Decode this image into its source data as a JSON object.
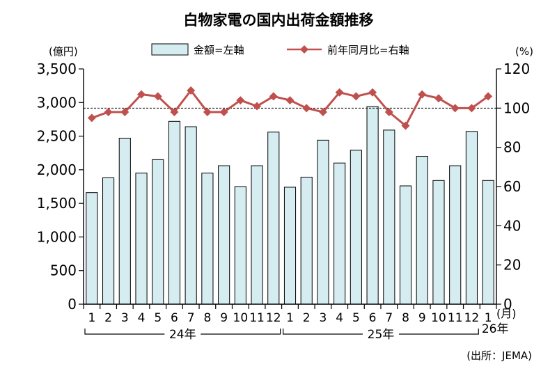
{
  "chart_data": {
    "type": "bar+line",
    "title": "白物家電の国内出荷金額推移",
    "left_axis_unit": "(億円)",
    "right_axis_unit": "(%)",
    "month_unit": "(月)",
    "source": "(出所：JEMA)",
    "left_axis": {
      "ylim": [
        0,
        3500
      ],
      "ticks": [
        "0",
        "500",
        "1,000",
        "1,500",
        "2,000",
        "2,500",
        "3,000",
        "3,500"
      ]
    },
    "right_axis": {
      "ylim": [
        0,
        120
      ],
      "ticks": [
        "0",
        "20",
        "40",
        "60",
        "80",
        "100",
        "120"
      ]
    },
    "reference_line_value": 100,
    "categories": [
      "1",
      "2",
      "3",
      "4",
      "5",
      "6",
      "7",
      "8",
      "9",
      "10",
      "11",
      "12",
      "1",
      "2",
      "3",
      "4",
      "5",
      "6",
      "7",
      "8",
      "9",
      "10",
      "11",
      "12",
      "1"
    ],
    "year_groups": [
      {
        "label": "24年",
        "start": 0,
        "end": 11
      },
      {
        "label": "25年",
        "start": 12,
        "end": 23
      },
      {
        "label": "26年",
        "start": 24,
        "end": 24
      }
    ],
    "series": [
      {
        "name": "金額=左軸",
        "type": "bar",
        "axis": "left",
        "color": "#d5ecf1",
        "values": [
          1660,
          1880,
          2470,
          1950,
          2150,
          2720,
          2640,
          1950,
          2060,
          1750,
          2060,
          2560,
          1740,
          1890,
          2440,
          2100,
          2290,
          2940,
          2590,
          1760,
          2200,
          1840,
          2060,
          2570,
          1840
        ]
      },
      {
        "name": "前年同月比=右軸",
        "type": "line",
        "axis": "right",
        "color": "#c0504d",
        "values": [
          95,
          98,
          98,
          107,
          106,
          98,
          109,
          98,
          98,
          104,
          101,
          106,
          104,
          100,
          98,
          108,
          106,
          108,
          98,
          91,
          107,
          105,
          100,
          100,
          106
        ]
      }
    ]
  }
}
